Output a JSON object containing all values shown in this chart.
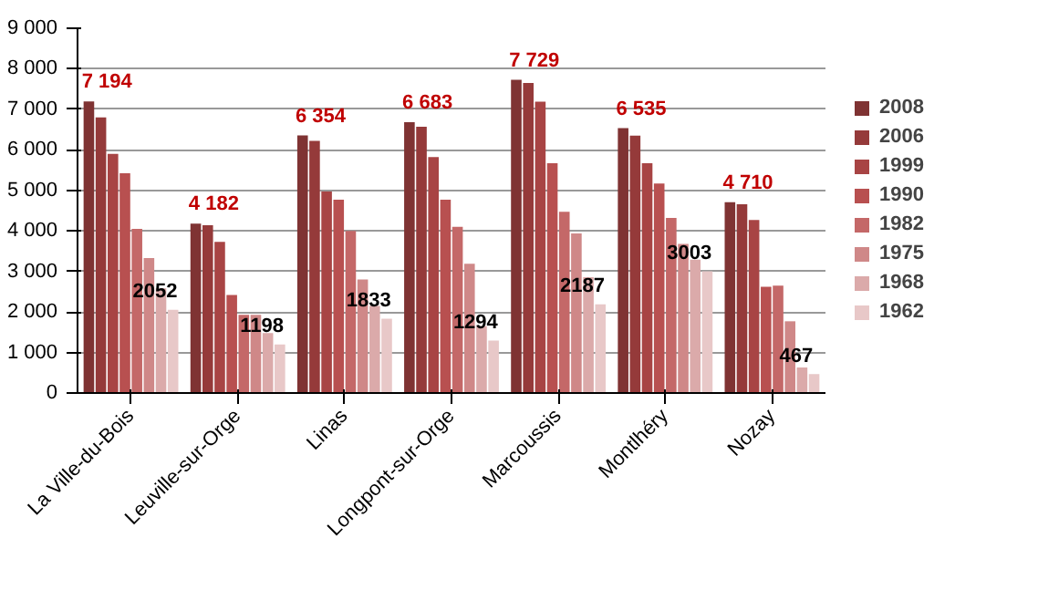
{
  "chart_data": {
    "type": "bar",
    "categories": [
      "La Ville-du-Bois",
      "Leuville-sur-Orge",
      "Linas",
      "Longpont-sur-Orge",
      "Marcoussis",
      "Montlhéry",
      "Nozay"
    ],
    "ylim": [
      0,
      9000
    ],
    "yticks": [
      0,
      {
        "value": 1000,
        "label": "1 000"
      },
      {
        "value": 2000,
        "label": "2 000"
      },
      {
        "value": 3000,
        "label": "3 000"
      },
      {
        "value": 4000,
        "label": "4 000"
      },
      {
        "value": 5000,
        "label": "5 000"
      },
      {
        "value": 6000,
        "label": "6 000"
      },
      {
        "value": 7000,
        "label": "7 000"
      },
      {
        "value": 8000,
        "label": "8 000"
      },
      {
        "value": 9000,
        "label": "9 000"
      }
    ],
    "grid": "y",
    "legend": "right",
    "series": [
      {
        "name": "2008",
        "color": "#7f3333",
        "values": [
          7194,
          4182,
          6354,
          6683,
          7729,
          6535,
          4710
        ],
        "value_labels": [
          "7 194",
          "4 182",
          "6 354",
          "6 683",
          "7 729",
          "6 535",
          "4 710"
        ]
      },
      {
        "name": "2006",
        "color": "#953a3a",
        "values": [
          6800,
          4140,
          6220,
          6570,
          7650,
          6350,
          4660
        ]
      },
      {
        "name": "1999",
        "color": "#a84444",
        "values": [
          5900,
          3730,
          4970,
          5820,
          7190,
          5670,
          4270
        ]
      },
      {
        "name": "1990",
        "color": "#b85050",
        "values": [
          5420,
          2420,
          4770,
          4770,
          5670,
          5170,
          2620
        ]
      },
      {
        "name": "1982",
        "color": "#c46868",
        "values": [
          4050,
          1930,
          4000,
          4100,
          4470,
          4320,
          2650
        ]
      },
      {
        "name": "1975",
        "color": "#cf8888",
        "values": [
          3330,
          1930,
          2800,
          3190,
          3940,
          3680,
          1770
        ]
      },
      {
        "name": "1968",
        "color": "#dbaaaa",
        "values": [
          2580,
          1480,
          2150,
          1650,
          2860,
          3290,
          630
        ]
      },
      {
        "name": "1962",
        "color": "#e8c8c8",
        "values": [
          2052,
          1198,
          1833,
          1294,
          2187,
          3003,
          467
        ],
        "value_labels": [
          "2052",
          "1198",
          "1833",
          "1294",
          "2187",
          "3003",
          "467"
        ]
      }
    ]
  }
}
